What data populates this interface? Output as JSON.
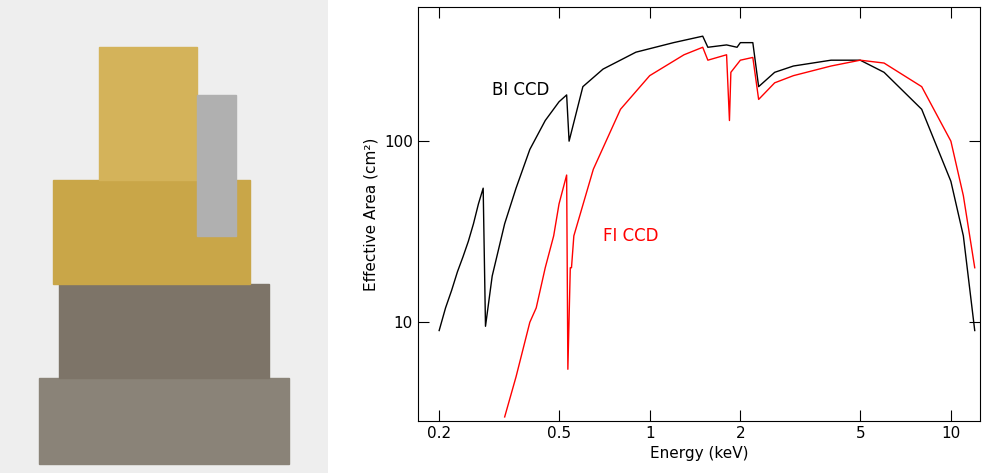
{
  "chart_data": {
    "type": "line",
    "x_label": "Energy (keV)",
    "y_label": "Effective Area (cm²)",
    "log": true,
    "xlim": [
      0.17,
      12.5
    ],
    "ylim": [
      2.85,
      550
    ],
    "xticks": [
      0.2,
      0.5,
      1,
      2,
      5,
      10
    ],
    "yticks": [
      10,
      100
    ],
    "series": [
      {
        "name": "BI CCD",
        "color": "#000000",
        "x": [
          0.2,
          0.21,
          0.22,
          0.23,
          0.24,
          0.25,
          0.26,
          0.27,
          0.28,
          0.285,
          0.3,
          0.33,
          0.36,
          0.4,
          0.45,
          0.5,
          0.53,
          0.54,
          0.6,
          0.7,
          0.9,
          1.2,
          1.5,
          1.56,
          1.8,
          1.95,
          2.0,
          2.2,
          2.3,
          2.6,
          3.0,
          4.0,
          5.0,
          6.0,
          8.0,
          10.0,
          11.0,
          12.0
        ],
        "values": [
          9,
          12,
          15,
          19,
          23,
          28,
          35,
          45,
          55,
          9.5,
          18,
          35,
          55,
          90,
          130,
          165,
          180,
          100,
          200,
          250,
          310,
          350,
          380,
          330,
          340,
          330,
          350,
          350,
          200,
          240,
          260,
          280,
          280,
          240,
          150,
          60,
          30,
          9
        ]
      },
      {
        "name": "FI CCD",
        "color": "#ff0000",
        "x": [
          0.33,
          0.36,
          0.4,
          0.42,
          0.45,
          0.48,
          0.5,
          0.53,
          0.535,
          0.545,
          0.55,
          0.56,
          0.65,
          0.8,
          1.0,
          1.3,
          1.5,
          1.56,
          1.8,
          1.84,
          1.86,
          2.0,
          2.2,
          2.3,
          2.6,
          3.0,
          4.0,
          5.0,
          6.0,
          8.0,
          10.0,
          11.0,
          12.0
        ],
        "values": [
          3,
          5,
          10,
          12,
          20,
          30,
          45,
          65,
          5.5,
          20,
          20,
          30,
          70,
          150,
          230,
          300,
          330,
          280,
          300,
          130,
          240,
          280,
          290,
          170,
          210,
          230,
          260,
          280,
          270,
          200,
          100,
          50,
          20
        ]
      }
    ],
    "annotations": [
      {
        "text": "BI CCD",
        "x": 0.3,
        "y": 180,
        "color": "#000000"
      },
      {
        "text": "FI CCD",
        "x": 0.7,
        "y": 28,
        "color": "#ff0000"
      }
    ]
  }
}
